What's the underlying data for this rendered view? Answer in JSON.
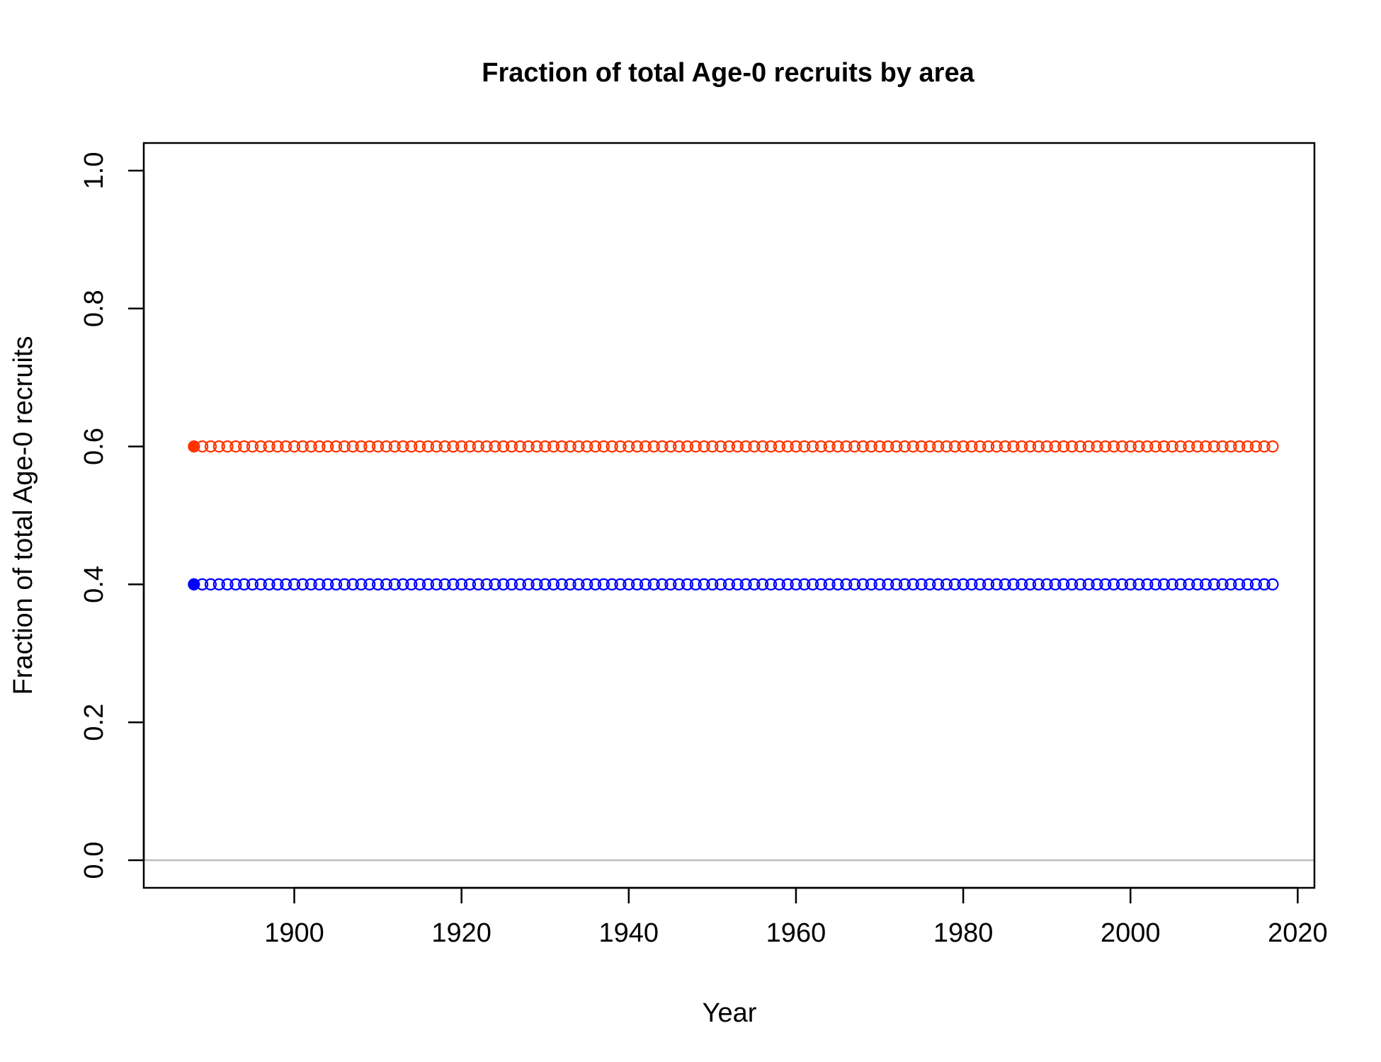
{
  "chart_data": {
    "type": "scatter",
    "title": "Fraction of total Age-0 recruits by area",
    "xlabel": "Year",
    "ylabel": "Fraction of total Age-0 recruits",
    "xlim": [
      1882,
      2022
    ],
    "ylim": [
      -0.04,
      1.04
    ],
    "xticks": [
      1900,
      1920,
      1940,
      1960,
      1980,
      2000,
      2020
    ],
    "yticks": [
      0.0,
      0.2,
      0.4,
      0.6,
      0.8,
      1.0
    ],
    "xtick_labels": [
      "1900",
      "1920",
      "1940",
      "1960",
      "1980",
      "2000",
      "2020"
    ],
    "ytick_labels": [
      "0.0",
      "0.2",
      "0.4",
      "0.6",
      "0.8",
      "1.0"
    ],
    "x_start": 1888,
    "x_end": 2017,
    "reference_line_y": 0,
    "reference_line_color": "#bebebe",
    "grid": false,
    "legend": "none",
    "series": [
      {
        "value": 0.6,
        "color": "#ff3300",
        "first_point_filled": true
      },
      {
        "value": 0.4,
        "color": "#0000ff",
        "first_point_filled": true
      }
    ]
  }
}
